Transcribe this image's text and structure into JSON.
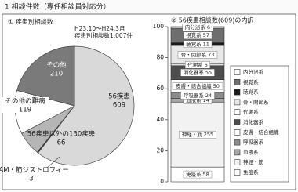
{
  "heading": "1 相談件数（専任相談員対応分）",
  "chart_data": [
    {
      "type": "pie",
      "title": "① 疾患別相談数",
      "subtitle": "H23.10～H24.3月",
      "note": "疾患別相談数1,007件",
      "categories": [
        "56疾患",
        "HAM・筋ジストロフィー",
        "56疾患以外の130疾患",
        "その他の難病",
        "その他"
      ],
      "values": [
        609,
        3,
        66,
        119,
        210
      ],
      "colors": [
        "#d9d9d9",
        "#333333",
        "#b5b5b5",
        "#ffffff",
        "#7a7a7a"
      ]
    },
    {
      "type": "bar",
      "stacking": "percent",
      "title": "② 56疾患相談数(609)の内訳",
      "ylim": [
        0,
        100
      ],
      "yticks": [
        0,
        20,
        40,
        60,
        80,
        100
      ],
      "series": [
        {
          "name": "内分泌系",
          "color": "#ffffff",
          "values": [
            6
          ]
        },
        {
          "name": "視覚系",
          "color": "#6e6e6e",
          "values": [
            57
          ]
        },
        {
          "name": "聴覚系",
          "color": "#1a1a1a",
          "values": [
            11
          ]
        },
        {
          "name": "骨・関節系",
          "color": "#e8e8e8",
          "values": [
            73
          ]
        },
        {
          "name": "代謝系",
          "color": "#ffffff",
          "values": [
            6
          ]
        },
        {
          "name": "消化器系",
          "color": "#4d4d4d",
          "values": [
            55
          ]
        },
        {
          "name": "皮膚・結合組織",
          "color": "#ffffff",
          "values": [
            50
          ]
        },
        {
          "name": "呼吸器系",
          "color": "#8c8c8c",
          "values": [
            24
          ]
        },
        {
          "name": "血液系",
          "color": "#a8a8a8",
          "values": [
            14
          ]
        },
        {
          "name": "神経・筋",
          "color": "#f2f2f2",
          "values": [
            255
          ]
        },
        {
          "name": "免疫系",
          "color": "#ffffff",
          "values": [
            58
          ]
        }
      ]
    }
  ]
}
